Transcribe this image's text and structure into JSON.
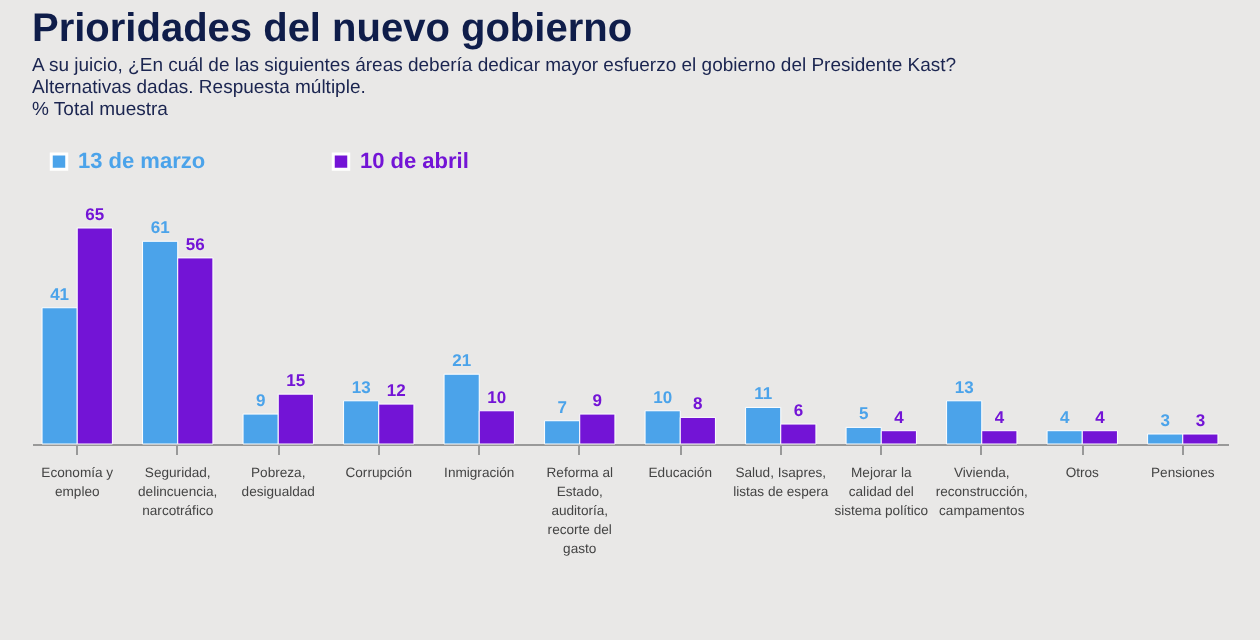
{
  "chart_data": {
    "type": "bar",
    "title": "Prioridades del nuevo gobierno",
    "subtitle": "A su juicio, ¿En cuál de las siguientes áreas debería dedicar mayor esfuerzo el gobierno del Presidente Kast?",
    "annotations": [
      "Alternativas dadas. Respuesta múltiple.",
      "% Total muestra"
    ],
    "categories": [
      "Economía y empleo",
      "Seguridad, delincuencia, narcotráfico",
      "Pobreza, desigualdad",
      "Corrupción",
      "Inmigración",
      "Reforma al Estado, auditoría, recorte del gasto",
      "Educación",
      "Salud, Isapres, listas de espera",
      "Mejorar la calidad del sistema político",
      "Vivienda, reconstrucción, campamentos",
      "Otros",
      "Pensiones"
    ],
    "series": [
      {
        "name": "13 de marzo",
        "color": "#4ba3ea",
        "values": [
          41,
          61,
          9,
          13,
          21,
          7,
          10,
          11,
          5,
          13,
          4,
          3
        ]
      },
      {
        "name": "10 de abril",
        "color": "#7314d6",
        "values": [
          65,
          56,
          15,
          12,
          10,
          9,
          8,
          6,
          4,
          4,
          4,
          3
        ]
      }
    ],
    "data_labels": true,
    "legend": "top",
    "grid": false
  }
}
